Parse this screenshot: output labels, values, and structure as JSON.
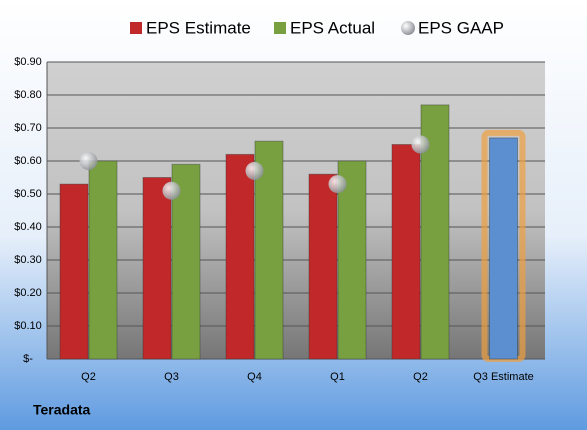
{
  "chart_data": {
    "type": "bar",
    "footer": "Teradata",
    "categories": [
      "Q2",
      "Q3",
      "Q4",
      "Q1",
      "Q2",
      "Q3 Estimate"
    ],
    "series": [
      {
        "name": "EPS Estimate",
        "color": "#c0282a",
        "values": [
          0.53,
          0.55,
          0.62,
          0.56,
          0.65,
          null
        ]
      },
      {
        "name": "EPS Actual",
        "color": "#78a040",
        "values": [
          0.6,
          0.59,
          0.66,
          0.6,
          0.77,
          null
        ]
      },
      {
        "name": "EPS GAAP",
        "type": "scatter",
        "color": "#a8acb0",
        "values": [
          0.6,
          0.51,
          0.57,
          0.53,
          0.65,
          null
        ]
      },
      {
        "color": "#5b8fd0",
        "values": [
          null,
          null,
          null,
          null,
          null,
          0.67
        ]
      }
    ],
    "ylim": [
      0,
      0.9
    ],
    "yticks": [
      {
        "value": 0,
        "label": "$-"
      },
      {
        "value": 0.1,
        "label": "$0.10"
      },
      {
        "value": 0.2,
        "label": "$0.20"
      },
      {
        "value": 0.3,
        "label": "$0.30"
      },
      {
        "value": 0.4,
        "label": "$0.40"
      },
      {
        "value": 0.5,
        "label": "$0.50"
      },
      {
        "value": 0.6,
        "label": "$0.60"
      },
      {
        "value": 0.7,
        "label": "$0.70"
      },
      {
        "value": 0.8,
        "label": "$0.80"
      },
      {
        "value": 0.9,
        "label": "$0.90"
      }
    ],
    "grid": true
  }
}
